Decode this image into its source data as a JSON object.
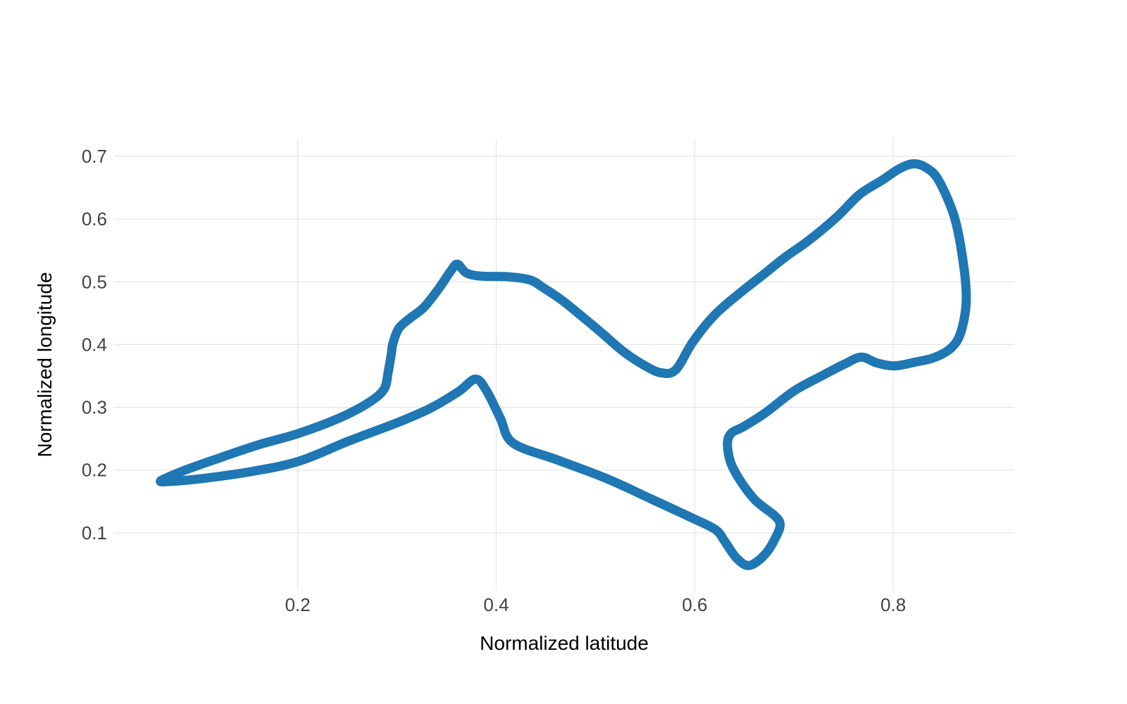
{
  "chart_data": {
    "type": "line",
    "title": "",
    "xlabel": "Normalized latitude",
    "ylabel": "Normalized longitude",
    "xlim": [
      0.015,
      0.922
    ],
    "ylim": [
      0.009,
      0.728
    ],
    "x_ticks": [
      0.2,
      0.4,
      0.6,
      0.8
    ],
    "x_tick_labels": [
      "0.2",
      "0.4",
      "0.6",
      "0.8"
    ],
    "y_ticks": [
      0.1,
      0.2,
      0.3,
      0.4,
      0.5,
      0.6,
      0.7
    ],
    "y_tick_labels": [
      "0.1",
      "0.2",
      "0.3",
      "0.4",
      "0.5",
      "0.6",
      "0.7"
    ],
    "grid": true,
    "legend_position": "none",
    "line_color": "#1f77b4",
    "line_width": 13,
    "grid_color": "#e6e6e6",
    "text_color": "#424242",
    "background_color": "#ffffff",
    "series": [
      {
        "name": "track-outline",
        "closed": true,
        "points": [
          [
            0.062,
            0.183
          ],
          [
            0.085,
            0.199
          ],
          [
            0.115,
            0.216
          ],
          [
            0.16,
            0.24
          ],
          [
            0.2,
            0.258
          ],
          [
            0.242,
            0.283
          ],
          [
            0.272,
            0.308
          ],
          [
            0.287,
            0.329
          ],
          [
            0.291,
            0.355
          ],
          [
            0.294,
            0.382
          ],
          [
            0.296,
            0.402
          ],
          [
            0.302,
            0.426
          ],
          [
            0.314,
            0.443
          ],
          [
            0.327,
            0.459
          ],
          [
            0.342,
            0.489
          ],
          [
            0.355,
            0.519
          ],
          [
            0.361,
            0.528
          ],
          [
            0.37,
            0.514
          ],
          [
            0.385,
            0.509
          ],
          [
            0.412,
            0.508
          ],
          [
            0.434,
            0.503
          ],
          [
            0.447,
            0.491
          ],
          [
            0.465,
            0.472
          ],
          [
            0.484,
            0.448
          ],
          [
            0.506,
            0.419
          ],
          [
            0.528,
            0.389
          ],
          [
            0.549,
            0.367
          ],
          [
            0.566,
            0.355
          ],
          [
            0.581,
            0.36
          ],
          [
            0.598,
            0.404
          ],
          [
            0.62,
            0.447
          ],
          [
            0.647,
            0.484
          ],
          [
            0.668,
            0.51
          ],
          [
            0.691,
            0.539
          ],
          [
            0.715,
            0.566
          ],
          [
            0.743,
            0.603
          ],
          [
            0.766,
            0.639
          ],
          [
            0.789,
            0.662
          ],
          [
            0.806,
            0.68
          ],
          [
            0.82,
            0.688
          ],
          [
            0.833,
            0.682
          ],
          [
            0.846,
            0.661
          ],
          [
            0.862,
            0.601
          ],
          [
            0.871,
            0.526
          ],
          [
            0.8735,
            0.468
          ],
          [
            0.868,
            0.419
          ],
          [
            0.858,
            0.394
          ],
          [
            0.841,
            0.379
          ],
          [
            0.822,
            0.372
          ],
          [
            0.801,
            0.366
          ],
          [
            0.783,
            0.371
          ],
          [
            0.768,
            0.38
          ],
          [
            0.751,
            0.369
          ],
          [
            0.729,
            0.351
          ],
          [
            0.7,
            0.326
          ],
          [
            0.671,
            0.291
          ],
          [
            0.649,
            0.269
          ],
          [
            0.637,
            0.259
          ],
          [
            0.633,
            0.243
          ],
          [
            0.636,
            0.213
          ],
          [
            0.646,
            0.183
          ],
          [
            0.661,
            0.152
          ],
          [
            0.68,
            0.128
          ],
          [
            0.686,
            0.114
          ],
          [
            0.682,
            0.094
          ],
          [
            0.671,
            0.066
          ],
          [
            0.655,
            0.048
          ],
          [
            0.642,
            0.06
          ],
          [
            0.63,
            0.087
          ],
          [
            0.621,
            0.105
          ],
          [
            0.597,
            0.124
          ],
          [
            0.556,
            0.154
          ],
          [
            0.512,
            0.186
          ],
          [
            0.462,
            0.216
          ],
          [
            0.417,
            0.243
          ],
          [
            0.404,
            0.283
          ],
          [
            0.39,
            0.327
          ],
          [
            0.379,
            0.345
          ],
          [
            0.362,
            0.325
          ],
          [
            0.333,
            0.298
          ],
          [
            0.301,
            0.276
          ],
          [
            0.251,
            0.246
          ],
          [
            0.201,
            0.214
          ],
          [
            0.151,
            0.197
          ],
          [
            0.101,
            0.186
          ],
          [
            0.073,
            0.182
          ]
        ]
      }
    ]
  }
}
